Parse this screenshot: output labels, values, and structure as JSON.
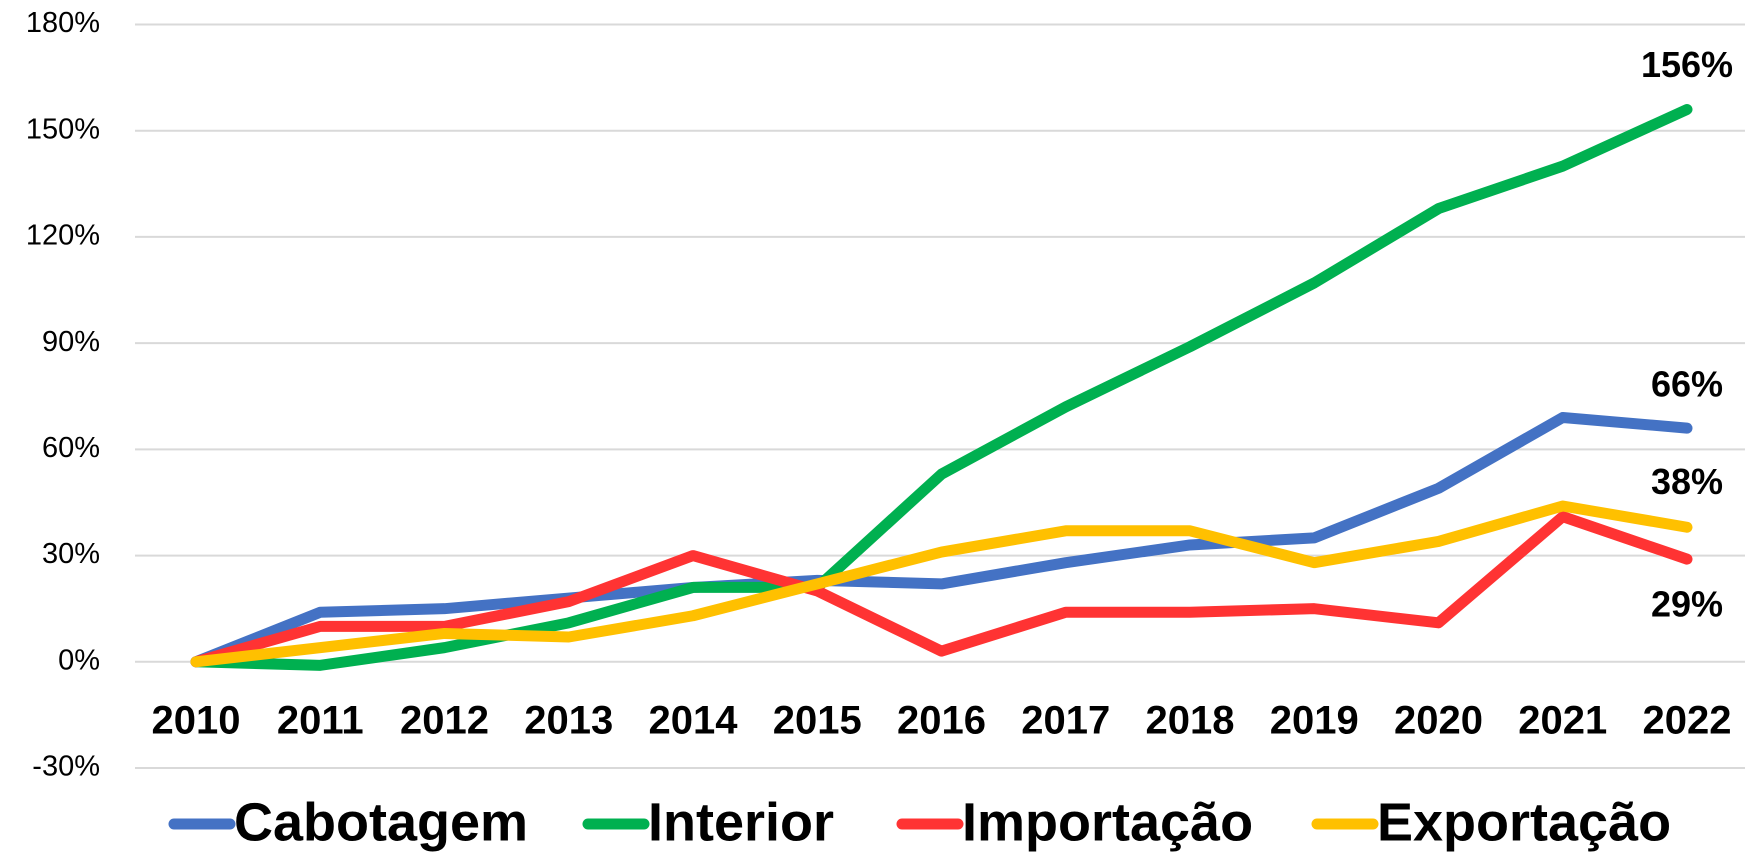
{
  "chart_data": {
    "type": "line",
    "categories": [
      "2010",
      "2011",
      "2012",
      "2013",
      "2014",
      "2015",
      "2016",
      "2017",
      "2018",
      "2019",
      "2020",
      "2021",
      "2022"
    ],
    "series": [
      {
        "name": "Cabotagem",
        "color": "#4472c4",
        "values": [
          0,
          14,
          15,
          18,
          21,
          23,
          22,
          28,
          33,
          35,
          49,
          69,
          66
        ],
        "value_labels": [
          null,
          null,
          null,
          null,
          null,
          null,
          null,
          null,
          null,
          null,
          null,
          null,
          "66%"
        ]
      },
      {
        "name": "Interior",
        "color": "#00b050",
        "values": [
          0,
          -1,
          4,
          11,
          21,
          21,
          53,
          72,
          89,
          107,
          128,
          140,
          156
        ],
        "value_labels": [
          null,
          null,
          null,
          null,
          null,
          null,
          null,
          null,
          null,
          null,
          null,
          null,
          "156%"
        ]
      },
      {
        "name": "Importação",
        "color": "#ff3333",
        "values": [
          0,
          10,
          10,
          17,
          30,
          20,
          3,
          14,
          14,
          15,
          11,
          41,
          29
        ],
        "value_labels": [
          null,
          null,
          null,
          null,
          null,
          null,
          null,
          null,
          null,
          null,
          null,
          null,
          "29%"
        ]
      },
      {
        "name": "Exportação",
        "color": "#ffc000",
        "values": [
          0,
          4,
          8,
          7,
          13,
          22,
          31,
          37,
          37,
          28,
          34,
          44,
          38
        ],
        "value_labels": [
          null,
          null,
          null,
          null,
          null,
          null,
          null,
          null,
          null,
          null,
          null,
          null,
          "38%"
        ]
      }
    ],
    "ylim": [
      -30,
      180
    ],
    "yticks": [
      {
        "value": -30,
        "label": "-30%"
      },
      {
        "value": 0,
        "label": "0%"
      },
      {
        "value": 30,
        "label": "30%"
      },
      {
        "value": 60,
        "label": "60%"
      },
      {
        "value": 90,
        "label": "90%"
      },
      {
        "value": 120,
        "label": "120%"
      },
      {
        "value": 150,
        "label": "150%"
      },
      {
        "value": 180,
        "label": "180%"
      }
    ],
    "grid": true,
    "legend": "bottom"
  }
}
